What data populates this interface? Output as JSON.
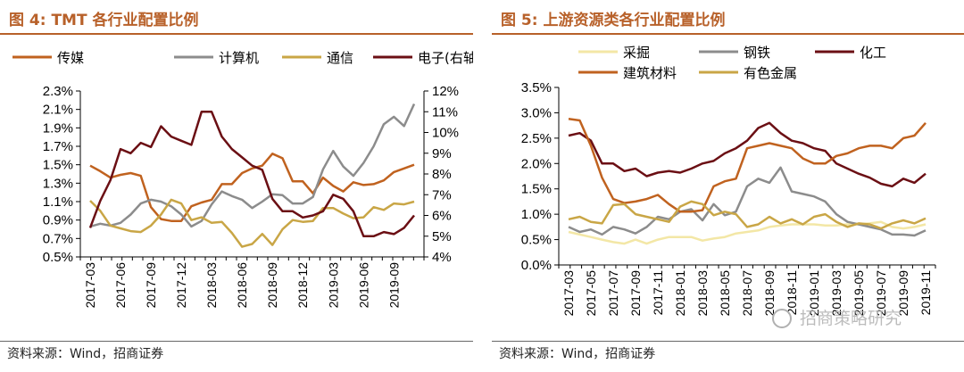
{
  "left": {
    "title": "图 4:  TMT 各行业配置比例",
    "source": "资料来源：Wind，招商证券",
    "chart_data": {
      "type": "line",
      "title": "图 4:  TMT 各行业配置比例",
      "x": [
        "2017-03",
        "2017-04",
        "2017-05",
        "2017-06",
        "2017-07",
        "2017-08",
        "2017-09",
        "2017-10",
        "2017-11",
        "2017-12",
        "2018-01",
        "2018-02",
        "2018-03",
        "2018-04",
        "2018-05",
        "2018-06",
        "2018-07",
        "2018-08",
        "2018-09",
        "2018-10",
        "2018-11",
        "2018-12",
        "2019-01",
        "2019-02",
        "2019-03",
        "2019-04",
        "2019-05",
        "2019-06",
        "2019-07",
        "2019-08",
        "2019-09",
        "2019-10",
        "2019-11"
      ],
      "x_tick_labels": [
        "2017-03",
        "2017-06",
        "2017-09",
        "2017-12",
        "2018-03",
        "2018-06",
        "2018-09",
        "2018-12",
        "2019-03",
        "2019-06",
        "2019-09"
      ],
      "y_left": {
        "min": 0.5,
        "max": 2.3,
        "ticks": [
          "0.5%",
          "0.7%",
          "0.9%",
          "1.1%",
          "1.3%",
          "1.5%",
          "1.7%",
          "1.9%",
          "2.1%",
          "2.3%"
        ]
      },
      "y_right": {
        "min": 4,
        "max": 12,
        "ticks": [
          "4%",
          "5%",
          "6%",
          "7%",
          "8%",
          "9%",
          "10%",
          "11%",
          "12%"
        ]
      },
      "series": [
        {
          "name": "传媒",
          "color": "#c0621f",
          "axis": "left",
          "values": [
            1.49,
            1.43,
            1.36,
            1.39,
            1.41,
            1.38,
            1.04,
            0.91,
            0.89,
            0.89,
            1.05,
            1.09,
            1.12,
            1.29,
            1.29,
            1.41,
            1.46,
            1.49,
            1.62,
            1.57,
            1.32,
            1.32,
            1.19,
            1.36,
            1.27,
            1.21,
            1.31,
            1.28,
            1.29,
            1.33,
            1.42,
            1.46,
            1.5
          ]
        },
        {
          "name": "计算机",
          "color": "#8c8c8c",
          "axis": "left",
          "values": [
            0.83,
            0.86,
            0.84,
            0.87,
            0.96,
            1.08,
            1.12,
            1.1,
            1.05,
            0.96,
            0.83,
            0.89,
            1.07,
            1.21,
            1.16,
            1.12,
            1.03,
            1.1,
            1.18,
            1.17,
            1.08,
            1.08,
            1.15,
            1.45,
            1.65,
            1.48,
            1.38,
            1.52,
            1.7,
            1.94,
            2.02,
            1.92,
            2.16
          ]
        },
        {
          "name": "通信",
          "color": "#c9a646",
          "axis": "left",
          "values": [
            1.11,
            1.0,
            0.84,
            0.81,
            0.78,
            0.77,
            0.84,
            0.96,
            1.12,
            1.08,
            0.9,
            0.93,
            0.87,
            0.88,
            0.76,
            0.61,
            0.64,
            0.75,
            0.63,
            0.8,
            0.9,
            0.88,
            0.89,
            1.03,
            1.03,
            0.97,
            0.92,
            0.93,
            1.04,
            1.01,
            1.08,
            1.07,
            1.1
          ]
        },
        {
          "name": "电子(右轴)",
          "color": "#6b0f14",
          "axis": "right",
          "values": [
            5.4,
            6.7,
            7.7,
            9.2,
            9.0,
            9.5,
            9.3,
            10.3,
            9.8,
            9.6,
            9.4,
            11.0,
            11.0,
            9.8,
            9.2,
            8.8,
            8.4,
            8.2,
            6.8,
            6.2,
            6.2,
            5.9,
            6.0,
            6.2,
            7.0,
            6.8,
            6.2,
            5.0,
            5.0,
            5.2,
            5.1,
            5.4,
            6.0
          ]
        }
      ]
    }
  },
  "right": {
    "title": "图 5:  上游资源类各行业配置比例",
    "source": "资料来源：Wind，招商证券",
    "watermark": "招商策略研究",
    "chart_data": {
      "type": "line",
      "title": "图 5:  上游资源类各行业配置比例",
      "x": [
        "2017-03",
        "2017-04",
        "2017-05",
        "2017-06",
        "2017-07",
        "2017-08",
        "2017-09",
        "2017-10",
        "2017-11",
        "2017-12",
        "2018-01",
        "2018-02",
        "2018-03",
        "2018-04",
        "2018-05",
        "2018-06",
        "2018-07",
        "2018-08",
        "2018-09",
        "2018-10",
        "2018-11",
        "2018-12",
        "2019-01",
        "2019-02",
        "2019-03",
        "2019-04",
        "2019-05",
        "2019-06",
        "2019-07",
        "2019-08",
        "2019-09",
        "2019-10",
        "2019-11"
      ],
      "x_tick_labels": [
        "2017-03",
        "2017-05",
        "2017-07",
        "2017-09",
        "2017-11",
        "2018-01",
        "2018-03",
        "2018-05",
        "2018-07",
        "2018-09",
        "2018-11",
        "2019-01",
        "2019-03",
        "2019-05",
        "2019-07",
        "2019-09",
        "2019-11"
      ],
      "y": {
        "min": 0,
        "max": 3.5,
        "ticks": [
          "0.0%",
          "0.5%",
          "1.0%",
          "1.5%",
          "2.0%",
          "2.5%",
          "3.0%",
          "3.5%"
        ]
      },
      "series": [
        {
          "name": "采掘",
          "color": "#f3e7a6",
          "values": [
            0.65,
            0.6,
            0.55,
            0.5,
            0.45,
            0.42,
            0.5,
            0.42,
            0.5,
            0.55,
            0.55,
            0.55,
            0.48,
            0.52,
            0.55,
            0.62,
            0.65,
            0.68,
            0.75,
            0.78,
            0.8,
            0.8,
            0.8,
            0.78,
            0.78,
            0.8,
            0.8,
            0.82,
            0.85,
            0.75,
            0.72,
            0.75,
            0.8
          ]
        },
        {
          "name": "钢铁",
          "color": "#8c8c8c",
          "values": [
            0.75,
            0.65,
            0.7,
            0.6,
            0.75,
            0.7,
            0.62,
            0.75,
            0.95,
            0.9,
            1.05,
            1.1,
            0.88,
            1.2,
            0.98,
            1.05,
            1.55,
            1.7,
            1.62,
            1.92,
            1.45,
            1.4,
            1.35,
            1.25,
            1.0,
            0.85,
            0.8,
            0.75,
            0.7,
            0.6,
            0.6,
            0.58,
            0.68
          ]
        },
        {
          "name": "化工",
          "color": "#6b0f14",
          "values": [
            2.55,
            2.6,
            2.45,
            2.0,
            2.0,
            1.85,
            1.9,
            1.75,
            1.82,
            1.85,
            1.82,
            1.9,
            2.0,
            2.05,
            2.2,
            2.3,
            2.45,
            2.7,
            2.8,
            2.6,
            2.45,
            2.4,
            2.3,
            2.25,
            2.0,
            1.9,
            1.8,
            1.72,
            1.6,
            1.55,
            1.7,
            1.62,
            1.8
          ]
        },
        {
          "name": "建筑材料",
          "color": "#c0621f",
          "values": [
            2.88,
            2.85,
            2.35,
            1.72,
            1.3,
            1.22,
            1.25,
            1.3,
            1.38,
            1.2,
            1.05,
            1.05,
            1.08,
            1.55,
            1.65,
            1.7,
            2.3,
            2.35,
            2.4,
            2.35,
            2.3,
            2.1,
            2.0,
            2.0,
            2.15,
            2.2,
            2.3,
            2.35,
            2.35,
            2.3,
            2.5,
            2.55,
            2.8
          ]
        },
        {
          "name": "有色金属",
          "color": "#c9a646",
          "values": [
            0.9,
            0.95,
            0.85,
            0.82,
            1.18,
            1.2,
            1.0,
            0.95,
            0.9,
            0.85,
            1.15,
            1.25,
            1.2,
            0.98,
            1.05,
            1.0,
            0.75,
            0.8,
            0.95,
            0.82,
            0.9,
            0.8,
            0.95,
            1.0,
            0.85,
            0.75,
            0.82,
            0.8,
            0.72,
            0.82,
            0.88,
            0.82,
            0.92
          ]
        }
      ]
    }
  }
}
